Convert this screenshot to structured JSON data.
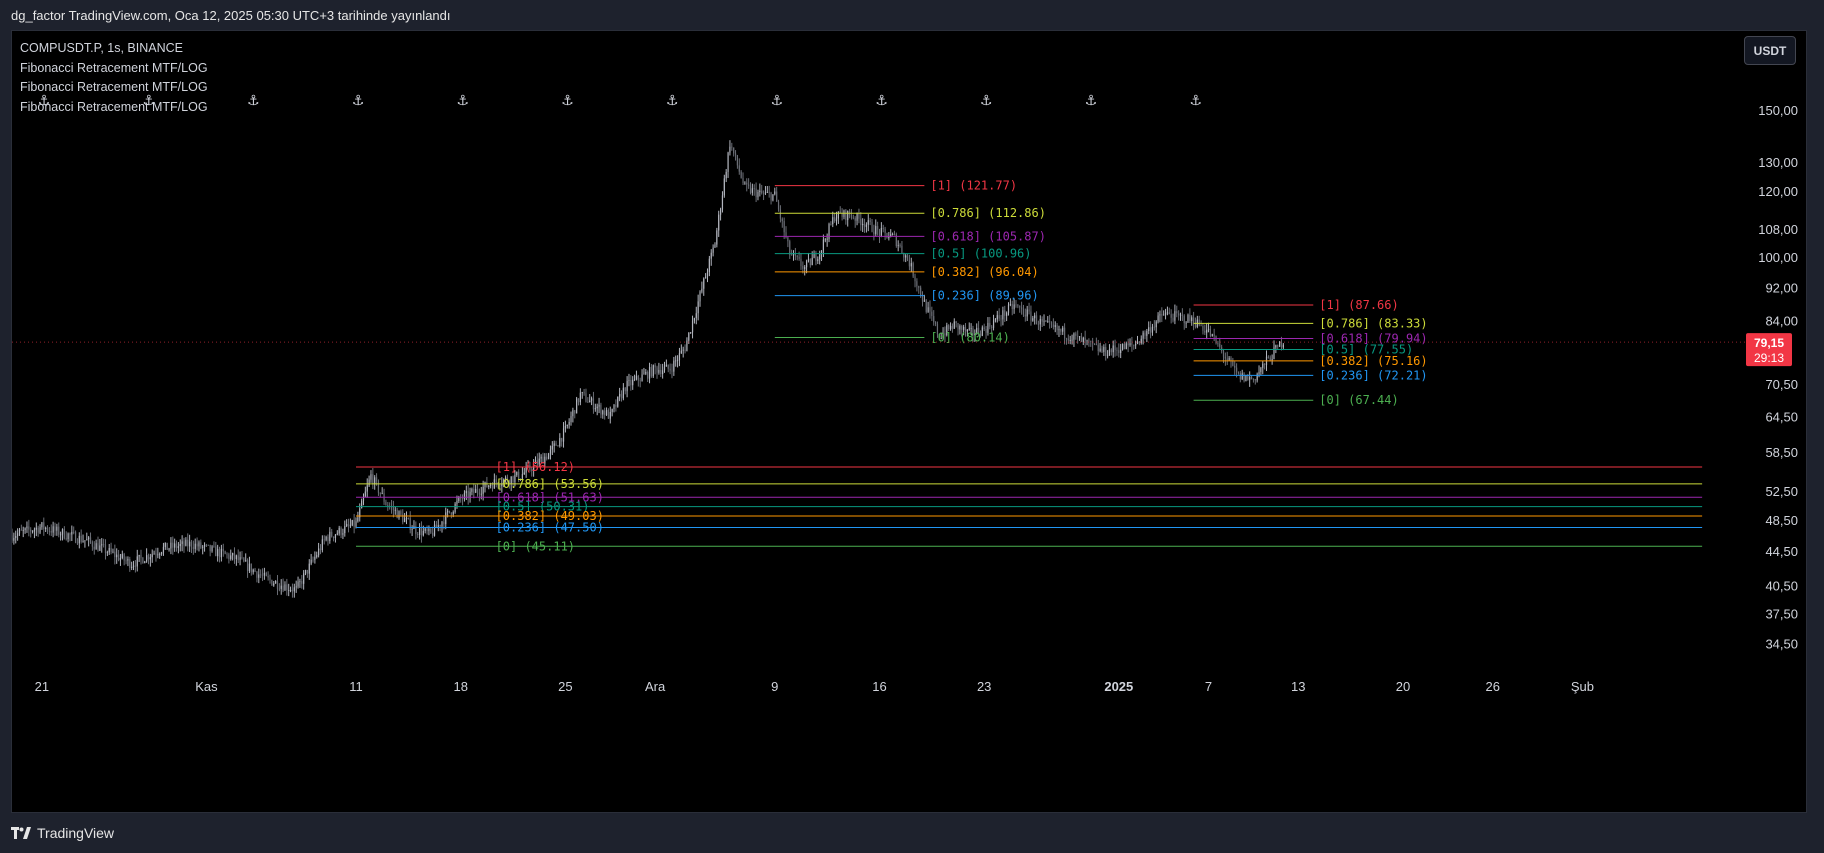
{
  "header": {
    "published": "dg_factor TradingView.com, Oca 12, 2025 05:30 UTC+3 tarihinde yayınlandı"
  },
  "legend": {
    "symbol": "COMPUSDT.P, 1s, BINANCE",
    "indicators": [
      "Fibonacci Retracement MTF/LOG",
      "Fibonacci Retracement MTF/LOG",
      "Fibonacci Retracement MTF/LOG"
    ]
  },
  "currency_button": "USDT",
  "footer": {
    "brand": "TradingView"
  },
  "icons": {
    "anchor": "anchor-icon",
    "logo": "tradingview-logo-icon"
  },
  "colors": {
    "background": "#000000",
    "frame": "#1e222d",
    "price_tag": "#f23645",
    "candle": "#9598a1"
  },
  "chart_data": {
    "type": "candlestick",
    "y_scale": "log",
    "ylim": [
      32,
      158
    ],
    "y_ticks": [
      150,
      130,
      120,
      108,
      100,
      92,
      84,
      70.5,
      64.5,
      58.5,
      52.5,
      48.5,
      44.5,
      40.5,
      37.5,
      34.5
    ],
    "y_tick_labels": [
      "150,00",
      "130,00",
      "120,00",
      "108,00",
      "100,00",
      "92,00",
      "84,00",
      "70,50",
      "64,50",
      "58,50",
      "52,50",
      "48,50",
      "44,50",
      "40,50",
      "37,50",
      "34,50"
    ],
    "x_ticks": [
      {
        "label": "21",
        "date": "2024-10-21",
        "bold": false
      },
      {
        "label": "Kas",
        "date": "2024-11-01",
        "bold": false
      },
      {
        "label": "11",
        "date": "2024-11-11",
        "bold": false
      },
      {
        "label": "18",
        "date": "2024-11-18",
        "bold": false
      },
      {
        "label": "25",
        "date": "2024-11-25",
        "bold": false
      },
      {
        "label": "Ara",
        "date": "2024-12-01",
        "bold": false
      },
      {
        "label": "9",
        "date": "2024-12-09",
        "bold": false
      },
      {
        "label": "16",
        "date": "2024-12-16",
        "bold": false
      },
      {
        "label": "23",
        "date": "2024-12-23",
        "bold": false
      },
      {
        "label": "2025",
        "date": "2025-01-01",
        "bold": true
      },
      {
        "label": "7",
        "date": "2025-01-07",
        "bold": false
      },
      {
        "label": "13",
        "date": "2025-01-13",
        "bold": false
      },
      {
        "label": "20",
        "date": "2025-01-20",
        "bold": false
      },
      {
        "label": "26",
        "date": "2025-01-26",
        "bold": false
      },
      {
        "label": "Şub",
        "date": "2025-02-01",
        "bold": false
      }
    ],
    "xlim": [
      "2024-10-19",
      "2025-02-12"
    ],
    "anchor_dates": [
      "2024-10-21",
      "2024-10-28",
      "2024-11-04",
      "2024-11-11",
      "2024-11-18",
      "2024-11-25",
      "2024-12-02",
      "2024-12-09",
      "2024-12-16",
      "2024-12-23",
      "2024-12-30",
      "2025-01-06"
    ],
    "price_path": [
      [
        "2024-10-19",
        46.5
      ],
      [
        "2024-10-21",
        47.6
      ],
      [
        "2024-10-24",
        45.8
      ],
      [
        "2024-10-27",
        43.0
      ],
      [
        "2024-10-29",
        44.8
      ],
      [
        "2024-10-31",
        45.4
      ],
      [
        "2024-11-03",
        43.6
      ],
      [
        "2024-11-05",
        41.2
      ],
      [
        "2024-11-07",
        40.0
      ],
      [
        "2024-11-09",
        46.2
      ],
      [
        "2024-11-11",
        48.0
      ],
      [
        "2024-11-12",
        54.8
      ],
      [
        "2024-11-13",
        50.8
      ],
      [
        "2024-11-15",
        47.2
      ],
      [
        "2024-11-16",
        46.6
      ],
      [
        "2024-11-18",
        51.4
      ],
      [
        "2024-11-20",
        53.6
      ],
      [
        "2024-11-22",
        54.8
      ],
      [
        "2024-11-24",
        58.4
      ],
      [
        "2024-11-25",
        62.0
      ],
      [
        "2024-11-26",
        68.5
      ],
      [
        "2024-11-28",
        64.5
      ],
      [
        "2024-11-29",
        70.0
      ],
      [
        "2024-12-01",
        73.5
      ],
      [
        "2024-12-02",
        73.5
      ],
      [
        "2024-12-03",
        78.0
      ],
      [
        "2024-12-04",
        90.0
      ],
      [
        "2024-12-05",
        104.0
      ],
      [
        "2024-12-06",
        137.0
      ],
      [
        "2024-12-07",
        121.0
      ],
      [
        "2024-12-08",
        119.0
      ],
      [
        "2024-12-09",
        118.5
      ],
      [
        "2024-12-10",
        101.0
      ],
      [
        "2024-12-11",
        97.0
      ],
      [
        "2024-12-12",
        101.5
      ],
      [
        "2024-12-13",
        112.0
      ],
      [
        "2024-12-14",
        112.5
      ],
      [
        "2024-12-15",
        110.0
      ],
      [
        "2024-12-16",
        107.0
      ],
      [
        "2024-12-17",
        105.5
      ],
      [
        "2024-12-18",
        98.5
      ],
      [
        "2024-12-19",
        88.0
      ],
      [
        "2024-12-20",
        80.5
      ],
      [
        "2024-12-21",
        83.0
      ],
      [
        "2024-12-22",
        81.0
      ],
      [
        "2024-12-23",
        82.0
      ],
      [
        "2024-12-25",
        87.5
      ],
      [
        "2024-12-27",
        83.0
      ],
      [
        "2024-12-29",
        80.2
      ],
      [
        "2024-12-31",
        77.0
      ],
      [
        "2025-01-02",
        78.5
      ],
      [
        "2025-01-04",
        85.5
      ],
      [
        "2025-01-06",
        84.0
      ],
      [
        "2025-01-07",
        81.5
      ],
      [
        "2025-01-08",
        76.5
      ],
      [
        "2025-01-09",
        72.0
      ],
      [
        "2025-01-10",
        71.5
      ],
      [
        "2025-01-11",
        75.5
      ],
      [
        "2025-01-12",
        79.5
      ]
    ],
    "current_price": {
      "label": "79,15",
      "countdown": "29:13",
      "value": 79.15
    },
    "fib_sets": [
      {
        "start": "2024-12-09",
        "end": "2024-12-19",
        "levels": [
          {
            "label": "[1] (121.77)",
            "value": 121.77,
            "color": "#f23645"
          },
          {
            "label": "[0.786] (112.86)",
            "value": 112.86,
            "color": "#cddc39"
          },
          {
            "label": "[0.618] (105.87)",
            "value": 105.87,
            "color": "#9c27b0"
          },
          {
            "label": "[0.5] (100.96)",
            "value": 100.96,
            "color": "#089981"
          },
          {
            "label": "[0.382] (96.04)",
            "value": 96.04,
            "color": "#ff9800"
          },
          {
            "label": "[0.236] (89.96)",
            "value": 89.96,
            "color": "#2196f3"
          },
          {
            "label": "[0] (80.14)",
            "value": 80.14,
            "color": "#4caf50"
          }
        ]
      },
      {
        "start": "2025-01-06",
        "end": "2025-01-14",
        "levels": [
          {
            "label": "[1] (87.66)",
            "value": 87.66,
            "color": "#f23645"
          },
          {
            "label": "[0.786] (83.33)",
            "value": 83.33,
            "color": "#cddc39"
          },
          {
            "label": "[0.618] (79.94)",
            "value": 79.94,
            "color": "#9c27b0"
          },
          {
            "label": "[0.5] (77.55)",
            "value": 77.55,
            "color": "#089981"
          },
          {
            "label": "[0.382] (75.16)",
            "value": 75.16,
            "color": "#ff9800"
          },
          {
            "label": "[0.236] (72.21)",
            "value": 72.21,
            "color": "#2196f3"
          },
          {
            "label": "[0] (67.44)",
            "value": 67.44,
            "color": "#4caf50"
          }
        ]
      },
      {
        "start": "2024-11-11",
        "end": "2025-02-09",
        "levels": [
          {
            "label": "[1] (56.12)",
            "value": 56.12,
            "color": "#f23645"
          },
          {
            "label": "[0.786] (53.56)",
            "value": 53.56,
            "color": "#cddc39"
          },
          {
            "label": "[0.618] (51.63)",
            "value": 51.63,
            "color": "#9c27b0"
          },
          {
            "label": "[0.5] (50.31)",
            "value": 50.31,
            "color": "#089981"
          },
          {
            "label": "[0.382] (49.03)",
            "value": 49.03,
            "color": "#ff9800"
          },
          {
            "label": "[0.236] (47.50)",
            "value": 47.5,
            "color": "#2196f3"
          },
          {
            "label": "[0] (45.11)",
            "value": 45.11,
            "color": "#4caf50"
          }
        ]
      }
    ]
  }
}
